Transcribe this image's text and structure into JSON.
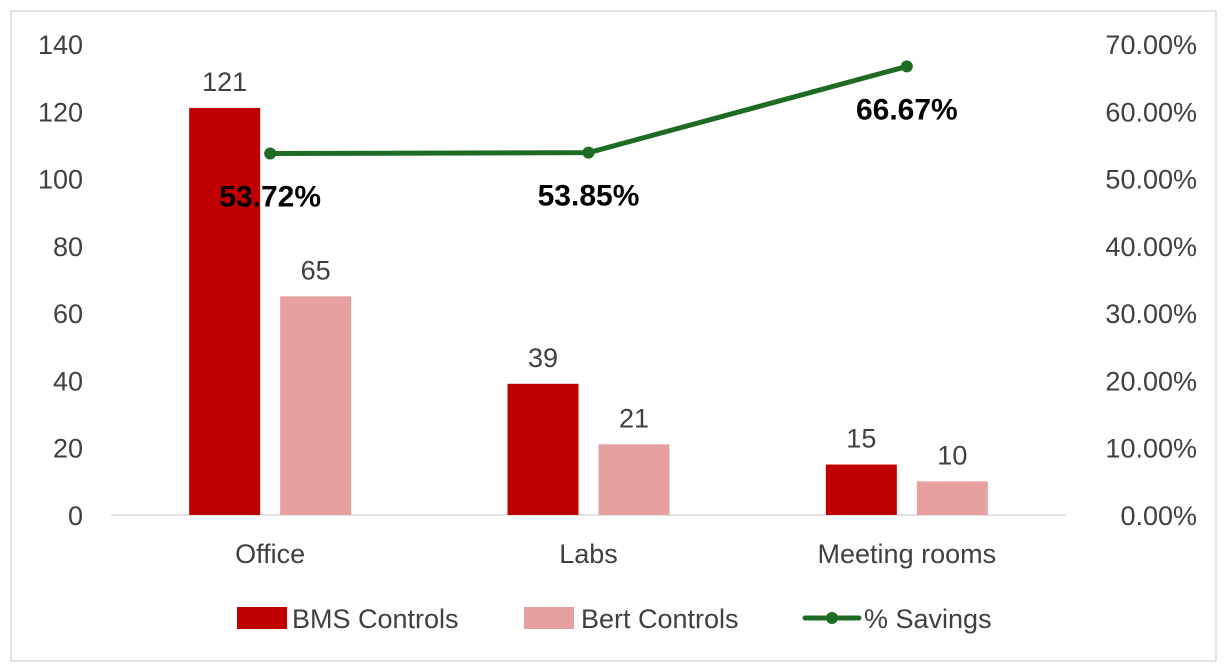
{
  "chart_data": {
    "type": "bar",
    "categories": [
      "Office",
      "Labs",
      "Meeting rooms"
    ],
    "series": [
      {
        "name": "BMS Controls",
        "type": "bar",
        "axis": "left",
        "color": "#C00000",
        "values": [
          121,
          39,
          15
        ]
      },
      {
        "name": "Bert Controls",
        "type": "bar",
        "axis": "left",
        "color": "#E6A0A0",
        "values": [
          65,
          21,
          10
        ]
      },
      {
        "name": "% Savings",
        "type": "line",
        "axis": "right",
        "color": "#1E6B23",
        "values": [
          53.72,
          53.85,
          66.67
        ],
        "labels": [
          "53.72%",
          "53.85%",
          "66.67%"
        ]
      }
    ],
    "left_axis": {
      "min": 0,
      "max": 140,
      "step": 20,
      "ticks": [
        "0",
        "20",
        "40",
        "60",
        "80",
        "100",
        "120",
        "140"
      ]
    },
    "right_axis": {
      "min": 0,
      "max": 70,
      "step": 10,
      "ticks": [
        "0.00%",
        "10.00%",
        "20.00%",
        "30.00%",
        "40.00%",
        "50.00%",
        "60.00%",
        "70.00%"
      ]
    },
    "grid": false,
    "legend_position": "bottom"
  }
}
